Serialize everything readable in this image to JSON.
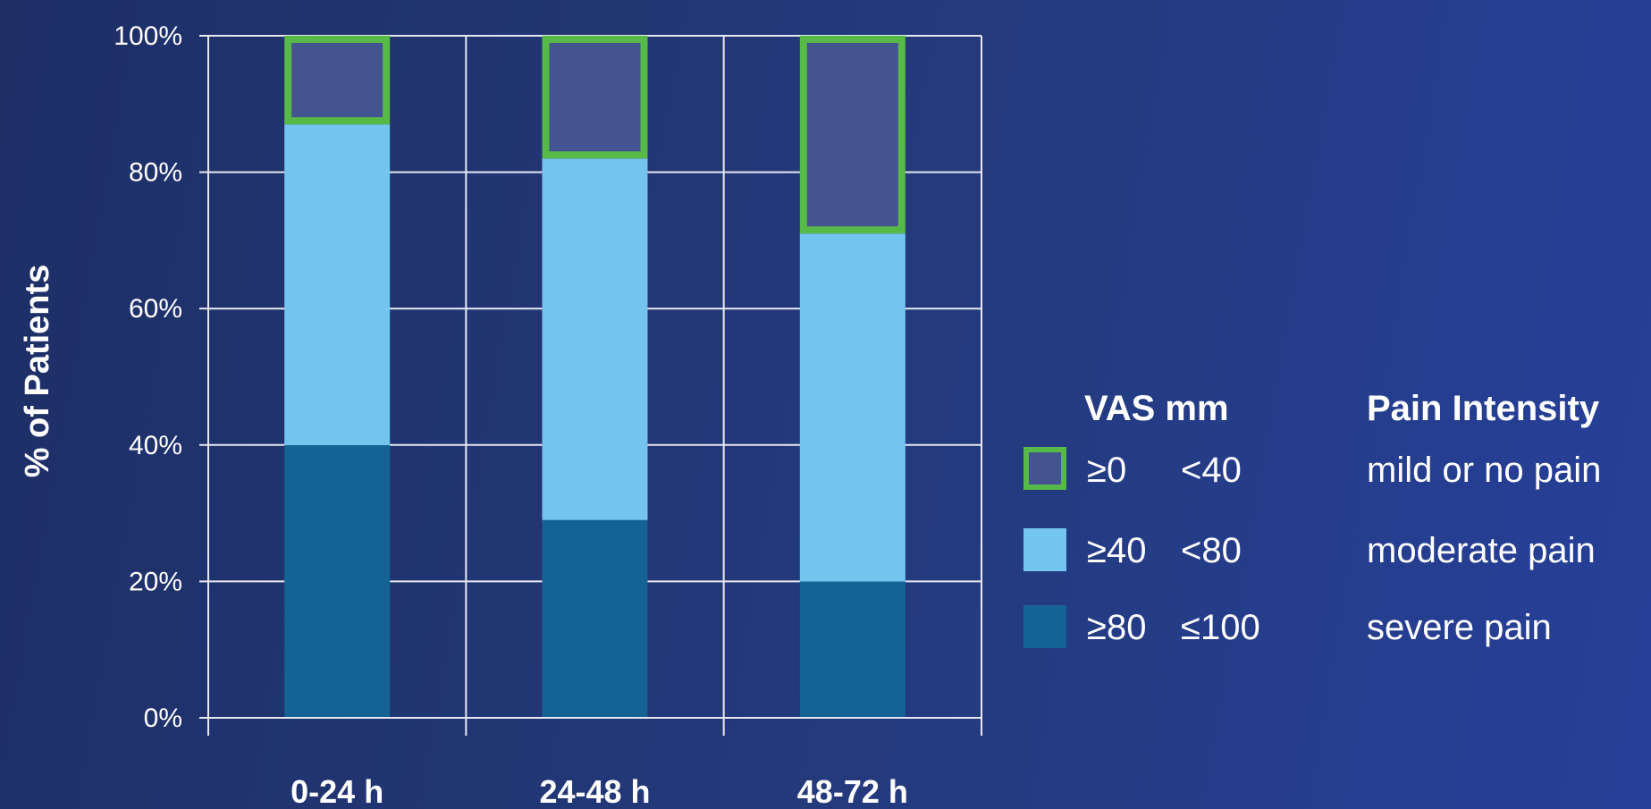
{
  "chart_data": {
    "type": "bar",
    "stacked": true,
    "categories": [
      "0-24 h",
      "24-48 h",
      "48-72 h"
    ],
    "series": [
      {
        "name": "≥80 ≤100 severe pain",
        "color": "#156295",
        "values": [
          40,
          29,
          20
        ]
      },
      {
        "name": "≥40 <80 moderate pain",
        "color": "#73c5f0",
        "values": [
          47,
          53,
          51
        ]
      },
      {
        "name": "≥0 <40 mild or no pain",
        "color": "#445491",
        "border": "#57b948",
        "values": [
          13,
          18,
          29
        ]
      }
    ],
    "ylabel": "% of Patients",
    "ylim": [
      0,
      100
    ],
    "yticks": [
      0,
      20,
      40,
      60,
      80,
      100
    ],
    "ytick_labels": [
      "0%",
      "20%",
      "40%",
      "60%",
      "80%",
      "100%"
    ],
    "grid": true,
    "legend_placement": "right"
  },
  "legend": {
    "header_vas": "VAS mm",
    "header_pain": "Pain Intensity",
    "rows": [
      {
        "lower": "≥0",
        "upper": "<40",
        "label": "mild or no pain"
      },
      {
        "lower": "≥40",
        "upper": "<80",
        "label": "moderate pain"
      },
      {
        "lower": "≥80",
        "upper": "≤100",
        "label": "severe pain"
      }
    ]
  },
  "colors": {
    "grid": "#e6e9f2",
    "mild_fill": "#445491",
    "mild_border": "#57b948",
    "moderate": "#73c5f0",
    "severe": "#156295"
  }
}
